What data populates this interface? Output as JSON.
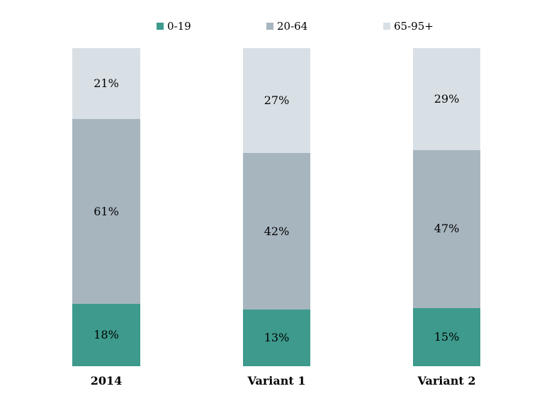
{
  "chart": {
    "background_color": "#ffffff",
    "text_color": "#000000"
  },
  "chart_data": {
    "type": "bar",
    "stacked": true,
    "normalized_to_full_height": true,
    "orientation": "vertical",
    "title": "",
    "xlabel": "",
    "ylabel": "",
    "gridlines": false,
    "axes_visible": false,
    "legend_position": "top",
    "value_suffix": "%",
    "categories": [
      "2014",
      "Variant 1",
      "Variant 2"
    ],
    "series": [
      {
        "name": "0-19",
        "color": "#3d9a8c",
        "values": [
          18,
          13,
          15
        ],
        "value_labels": [
          "18%",
          "13%",
          "15%"
        ]
      },
      {
        "name": "20-64",
        "color": "#a7b5bf",
        "values": [
          61,
          42,
          47
        ],
        "value_labels": [
          "61%",
          "42%",
          "47%"
        ]
      },
      {
        "name": "65-95+",
        "color": "#d8e0e6",
        "values": [
          21,
          27,
          29
        ],
        "value_labels": [
          "21%",
          "27%",
          "29%"
        ]
      }
    ]
  }
}
